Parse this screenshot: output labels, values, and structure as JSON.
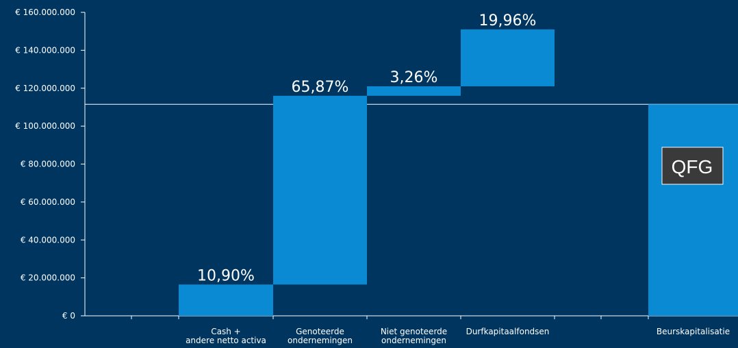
{
  "colors": {
    "background": "#00355f",
    "bar": "#0a8ad2",
    "axis": "#ffffff"
  },
  "logo": {
    "text": "QFG"
  },
  "chart_data": {
    "type": "bar",
    "subtype": "waterfall",
    "ylim": [
      0,
      160000000
    ],
    "yticks": [
      0,
      20000000,
      40000000,
      60000000,
      80000000,
      100000000,
      120000000,
      140000000,
      160000000
    ],
    "ytick_labels": [
      "€ 0",
      "€ 20.000.000",
      "€ 40.000.000",
      "€ 60.000.000",
      "€ 80.000.000",
      "€ 100.000.000",
      "€ 120.000.000",
      "€ 140.000.000",
      "€ 160.000.000"
    ],
    "reference_line": 111500000,
    "bars": [
      {
        "category": [
          "Cash +",
          "andere netto activa"
        ],
        "base": 0,
        "top": 16500000,
        "label": "10,90%"
      },
      {
        "category": [
          "Genoteerde",
          "ondernemingen"
        ],
        "base": 16500000,
        "top": 116000000,
        "label": "65,87%"
      },
      {
        "category": [
          "Niet genoteerde",
          "ondernemingen"
        ],
        "base": 116000000,
        "top": 121000000,
        "label": "3,26%"
      },
      {
        "category": [
          "Durfkapitaalfondsen"
        ],
        "base": 121000000,
        "top": 151000000,
        "label": "19,96%"
      },
      {
        "category": [
          "Beurskapitalisatie"
        ],
        "base": 0,
        "top": 111500000,
        "label": ""
      }
    ]
  }
}
